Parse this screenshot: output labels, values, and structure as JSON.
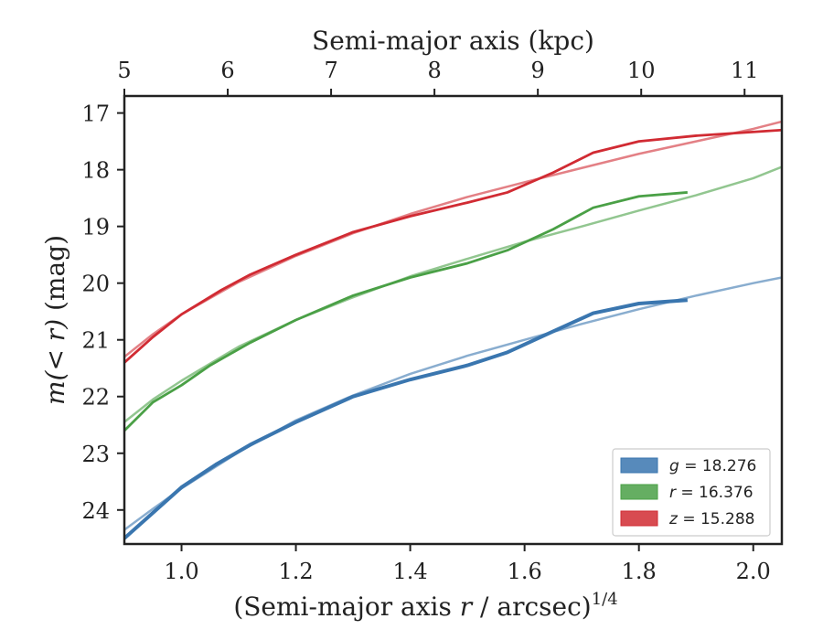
{
  "chart_data": {
    "type": "line",
    "xlabel_bottom_prefix": "(Semi-major axis ",
    "xlabel_bottom_var": "r",
    "xlabel_bottom_suffix": " / arcsec)",
    "xlabel_bottom_exponent": "1/4",
    "xlabel_top": "Semi-major axis (kpc)",
    "ylabel_italic": "m(< r)",
    "ylabel_unit": " (mag)",
    "xlim": [
      0.9,
      2.05
    ],
    "ylim": [
      24.6,
      16.7
    ],
    "y_inverted": true,
    "x_ticks": [
      1.0,
      1.2,
      1.4,
      1.6,
      1.8,
      2.0
    ],
    "x_tick_labels": [
      "1.0",
      "1.2",
      "1.4",
      "1.6",
      "1.8",
      "2.0"
    ],
    "y_ticks": [
      17,
      18,
      19,
      20,
      21,
      22,
      23,
      24
    ],
    "y_tick_labels": [
      "17",
      "18",
      "19",
      "20",
      "21",
      "22",
      "23",
      "24"
    ],
    "top_ticks_kpc": [
      5,
      6,
      7,
      8,
      9,
      10,
      11
    ],
    "top_tick_labels": [
      "5",
      "6",
      "7",
      "8",
      "9",
      "10",
      "11"
    ],
    "kpc_scale_factor": 5.0,
    "legend_position": "lower-right",
    "series": [
      {
        "name": "g",
        "legend_label": "g = 18.276",
        "legend_var": "g",
        "legend_value": "= 18.276",
        "color": "#3a76af",
        "data": {
          "x": [
            0.9,
            0.95,
            1.0,
            1.06,
            1.12,
            1.2,
            1.3,
            1.4,
            1.5,
            1.57,
            1.65,
            1.72,
            1.8,
            1.885
          ],
          "y": [
            24.5,
            24.05,
            23.6,
            23.2,
            22.85,
            22.45,
            22.0,
            21.7,
            21.45,
            21.22,
            20.85,
            20.53,
            20.36,
            20.3
          ]
        },
        "model": {
          "x": [
            0.9,
            0.95,
            1.0,
            1.1,
            1.2,
            1.3,
            1.4,
            1.5,
            1.6,
            1.7,
            1.8,
            1.9,
            2.0,
            2.05
          ],
          "y": [
            24.35,
            23.98,
            23.62,
            22.98,
            22.42,
            21.98,
            21.6,
            21.28,
            21.0,
            20.72,
            20.46,
            20.22,
            20.0,
            19.9
          ]
        }
      },
      {
        "name": "r",
        "legend_label": "r = 16.376",
        "legend_var": "r",
        "legend_value": "= 16.376",
        "color": "#4aa046",
        "data": {
          "x": [
            0.9,
            0.95,
            1.0,
            1.05,
            1.12,
            1.2,
            1.3,
            1.4,
            1.5,
            1.57,
            1.65,
            1.72,
            1.8,
            1.885
          ],
          "y": [
            22.6,
            22.1,
            21.8,
            21.45,
            21.05,
            20.65,
            20.22,
            19.9,
            19.65,
            19.42,
            19.05,
            18.67,
            18.47,
            18.4
          ]
        },
        "model": {
          "x": [
            0.9,
            0.95,
            1.0,
            1.1,
            1.2,
            1.3,
            1.4,
            1.5,
            1.6,
            1.7,
            1.8,
            1.9,
            2.0,
            2.05
          ],
          "y": [
            22.45,
            22.05,
            21.72,
            21.12,
            20.65,
            20.25,
            19.88,
            19.57,
            19.27,
            19.0,
            18.72,
            18.45,
            18.15,
            17.95
          ]
        }
      },
      {
        "name": "z",
        "legend_label": "z = 15.288",
        "legend_var": "z",
        "legend_value": "= 15.288",
        "color": "#d12b33",
        "data": {
          "x": [
            0.9,
            0.95,
            1.0,
            1.07,
            1.12,
            1.2,
            1.3,
            1.4,
            1.5,
            1.57,
            1.65,
            1.72,
            1.8,
            1.9,
            2.05
          ],
          "y": [
            21.4,
            20.95,
            20.55,
            20.12,
            19.85,
            19.5,
            19.1,
            18.82,
            18.58,
            18.4,
            18.05,
            17.7,
            17.5,
            17.4,
            17.3
          ]
        },
        "model": {
          "x": [
            0.9,
            0.95,
            1.0,
            1.1,
            1.2,
            1.3,
            1.4,
            1.5,
            1.6,
            1.7,
            1.8,
            1.9,
            2.0,
            2.05
          ],
          "y": [
            21.3,
            20.9,
            20.55,
            19.98,
            19.52,
            19.12,
            18.78,
            18.48,
            18.22,
            17.97,
            17.72,
            17.5,
            17.28,
            17.15
          ]
        }
      }
    ]
  }
}
